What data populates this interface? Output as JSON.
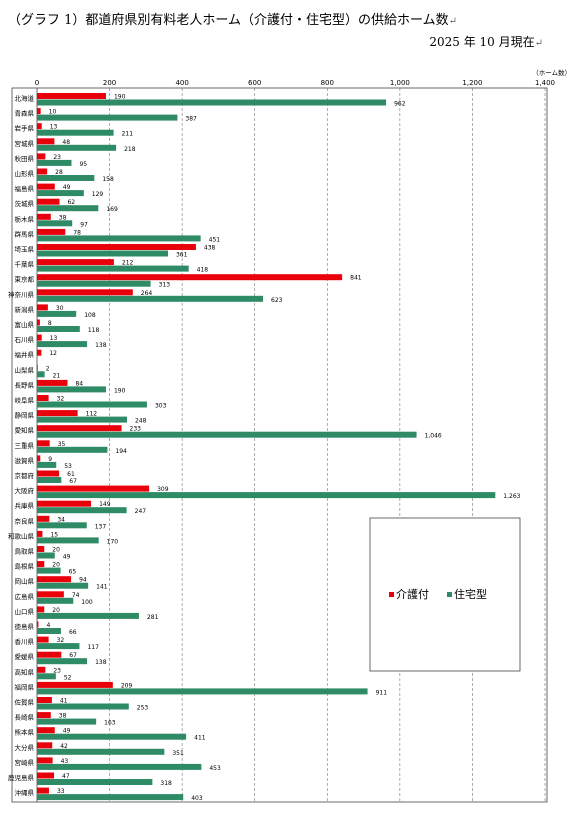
{
  "title": "（グラフ 1）都道府県別有料老人ホーム（介護付・住宅型）の供給ホーム数",
  "subtitle": "2025 年 10 月現在",
  "chart_data": {
    "type": "bar",
    "orientation": "horizontal",
    "xunit": "（ホーム数）",
    "xlim": [
      0,
      1400
    ],
    "xticks": [
      "0",
      "200",
      "400",
      "600",
      "800",
      "1,000",
      "1,200",
      "1,400"
    ],
    "grid": "vertical dashed",
    "legend_position": "right-middle",
    "categories": [
      "北海道",
      "青森県",
      "岩手県",
      "宮城県",
      "秋田県",
      "山形県",
      "福島県",
      "茨城県",
      "栃木県",
      "群馬県",
      "埼玉県",
      "千葉県",
      "東京都",
      "神奈川県",
      "新潟県",
      "富山県",
      "石川県",
      "福井県",
      "山梨県",
      "長野県",
      "岐阜県",
      "静岡県",
      "愛知県",
      "三重県",
      "滋賀県",
      "京都府",
      "大阪府",
      "兵庫県",
      "奈良県",
      "和歌山県",
      "鳥取県",
      "島根県",
      "岡山県",
      "広島県",
      "山口県",
      "徳島県",
      "香川県",
      "愛媛県",
      "高知県",
      "福岡県",
      "佐賀県",
      "長崎県",
      "熊本県",
      "大分県",
      "宮崎県",
      "鹿児島県",
      "沖縄県"
    ],
    "series": [
      {
        "name": "介護付",
        "color": "#e8000b",
        "values": [
          190,
          10,
          13,
          48,
          23,
          28,
          49,
          62,
          38,
          78,
          438,
          212,
          841,
          264,
          30,
          8,
          13,
          12,
          2,
          84,
          32,
          112,
          233,
          35,
          9,
          61,
          309,
          149,
          34,
          15,
          20,
          20,
          94,
          74,
          20,
          4,
          32,
          67,
          23,
          209,
          41,
          38,
          49,
          42,
          43,
          47,
          33
        ],
        "labels": [
          "190",
          "10",
          "13",
          "48",
          "23",
          "28",
          "49",
          "62",
          "38",
          "78",
          "438",
          "212",
          "841",
          "264",
          "30",
          "8",
          "13",
          "12",
          "2",
          "84",
          "32",
          "112",
          "233",
          "35",
          "9",
          "61",
          "309",
          "149",
          "34",
          "15",
          "20",
          "20",
          "94",
          "74",
          "20",
          "4",
          "32",
          "67",
          "23",
          "209",
          "41",
          "38",
          "49",
          "42",
          "43",
          "47",
          "33"
        ]
      },
      {
        "name": "住宅型",
        "color": "#2e8b66",
        "values": [
          962,
          387,
          211,
          218,
          95,
          158,
          129,
          169,
          97,
          451,
          361,
          418,
          313,
          623,
          108,
          118,
          138,
          0,
          21,
          190,
          303,
          248,
          1046,
          194,
          53,
          67,
          1263,
          247,
          137,
          170,
          49,
          65,
          141,
          100,
          281,
          66,
          117,
          138,
          52,
          911,
          253,
          163,
          411,
          351,
          453,
          318,
          403
        ],
        "labels": [
          "962",
          "387",
          "211",
          "218",
          "95",
          "158",
          "129",
          "169",
          "97",
          "451",
          "361",
          "418",
          "313",
          "623",
          "108",
          "118",
          "138",
          "",
          "21",
          "190",
          "303",
          "248",
          "1,046",
          "194",
          "53",
          "67",
          "1,263",
          "247",
          "137",
          "170",
          "49",
          "65",
          "141",
          "100",
          "281",
          "66",
          "117",
          "138",
          "52",
          "911",
          "253",
          "163",
          "411",
          "351",
          "453",
          "318",
          "403"
        ]
      }
    ]
  }
}
